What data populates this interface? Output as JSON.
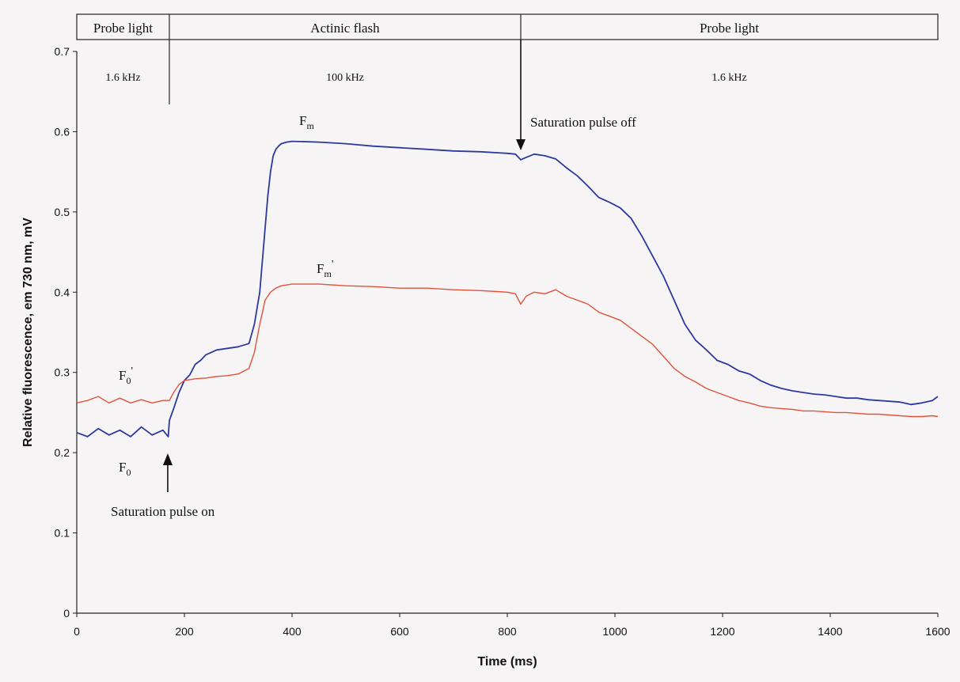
{
  "chart_data": {
    "type": "line",
    "xlabel": "Time (ms)",
    "ylabel": "Relative fluorescence, em 730 nm, mV",
    "xlim": [
      0,
      1600
    ],
    "ylim": [
      0,
      0.7
    ],
    "x_ticks": [
      "0",
      "200",
      "400",
      "600",
      "800",
      "1000",
      "1200",
      "1400",
      "1600"
    ],
    "y_ticks": [
      "0",
      "0.1",
      "0.2",
      "0.3",
      "0.4",
      "0.5",
      "0.6",
      "0.7"
    ],
    "phases": [
      {
        "label": "Probe light",
        "freq": "1.6 kHz",
        "start": 0,
        "end": 172
      },
      {
        "label": "Actinic flash",
        "freq": "100 kHz",
        "start": 172,
        "end": 825
      },
      {
        "label": "Probe light",
        "freq": "1.6 kHz",
        "start": 825,
        "end": 1600
      }
    ],
    "annotations": {
      "pulse_on": "Saturation pulse on",
      "pulse_off": "Saturation pulse off",
      "fm": "F",
      "fm_sub": "m",
      "fm_prime": "F",
      "fm_prime_sub": "m",
      "fm_prime_mark": "'",
      "f0": "F",
      "f0_sub": "0",
      "f0_prime": "F",
      "f0_prime_sub": "0",
      "f0_prime_mark": "'"
    },
    "series": [
      {
        "color": "#2b3a9e",
        "x": [
          0,
          20,
          40,
          60,
          80,
          100,
          120,
          140,
          160,
          170,
          172,
          180,
          190,
          200,
          210,
          220,
          230,
          240,
          260,
          280,
          300,
          320,
          330,
          340,
          345,
          350,
          355,
          360,
          365,
          370,
          375,
          380,
          390,
          400,
          450,
          500,
          550,
          600,
          650,
          700,
          750,
          800,
          815,
          825,
          835,
          850,
          870,
          890,
          910,
          930,
          950,
          970,
          990,
          1010,
          1030,
          1050,
          1070,
          1090,
          1110,
          1130,
          1150,
          1170,
          1190,
          1210,
          1230,
          1250,
          1270,
          1290,
          1310,
          1330,
          1350,
          1370,
          1390,
          1410,
          1430,
          1450,
          1470,
          1490,
          1510,
          1530,
          1550,
          1570,
          1590,
          1600
        ],
        "y": [
          0.225,
          0.22,
          0.23,
          0.222,
          0.228,
          0.22,
          0.232,
          0.222,
          0.228,
          0.22,
          0.24,
          0.255,
          0.275,
          0.29,
          0.297,
          0.31,
          0.315,
          0.322,
          0.328,
          0.33,
          0.332,
          0.336,
          0.36,
          0.4,
          0.44,
          0.48,
          0.52,
          0.55,
          0.57,
          0.578,
          0.582,
          0.585,
          0.587,
          0.588,
          0.587,
          0.585,
          0.582,
          0.58,
          0.578,
          0.576,
          0.575,
          0.573,
          0.572,
          0.565,
          0.568,
          0.572,
          0.57,
          0.566,
          0.555,
          0.545,
          0.532,
          0.518,
          0.512,
          0.505,
          0.492,
          0.47,
          0.445,
          0.42,
          0.39,
          0.36,
          0.34,
          0.328,
          0.315,
          0.31,
          0.302,
          0.298,
          0.29,
          0.284,
          0.28,
          0.277,
          0.275,
          0.273,
          0.272,
          0.27,
          0.268,
          0.268,
          0.266,
          0.265,
          0.264,
          0.263,
          0.26,
          0.262,
          0.265,
          0.27
        ]
      },
      {
        "color": "#e0533a",
        "x": [
          0,
          20,
          40,
          60,
          80,
          100,
          120,
          140,
          160,
          172,
          180,
          190,
          200,
          220,
          240,
          260,
          280,
          300,
          320,
          330,
          340,
          350,
          360,
          370,
          380,
          400,
          450,
          500,
          550,
          600,
          650,
          700,
          750,
          800,
          815,
          825,
          835,
          850,
          870,
          890,
          910,
          930,
          950,
          970,
          990,
          1010,
          1030,
          1050,
          1070,
          1090,
          1110,
          1130,
          1150,
          1170,
          1190,
          1210,
          1230,
          1250,
          1270,
          1290,
          1310,
          1330,
          1350,
          1370,
          1390,
          1410,
          1430,
          1450,
          1470,
          1490,
          1510,
          1530,
          1550,
          1570,
          1590,
          1600
        ],
        "y": [
          0.262,
          0.265,
          0.27,
          0.262,
          0.268,
          0.262,
          0.266,
          0.262,
          0.265,
          0.265,
          0.275,
          0.285,
          0.29,
          0.292,
          0.293,
          0.295,
          0.296,
          0.298,
          0.305,
          0.325,
          0.36,
          0.39,
          0.4,
          0.405,
          0.408,
          0.41,
          0.41,
          0.408,
          0.407,
          0.405,
          0.405,
          0.403,
          0.402,
          0.4,
          0.398,
          0.385,
          0.395,
          0.4,
          0.398,
          0.403,
          0.395,
          0.39,
          0.385,
          0.375,
          0.37,
          0.365,
          0.355,
          0.345,
          0.335,
          0.32,
          0.305,
          0.295,
          0.288,
          0.28,
          0.275,
          0.27,
          0.265,
          0.262,
          0.258,
          0.256,
          0.255,
          0.254,
          0.252,
          0.252,
          0.251,
          0.25,
          0.25,
          0.249,
          0.248,
          0.248,
          0.247,
          0.246,
          0.245,
          0.245,
          0.246,
          0.245
        ]
      }
    ]
  }
}
